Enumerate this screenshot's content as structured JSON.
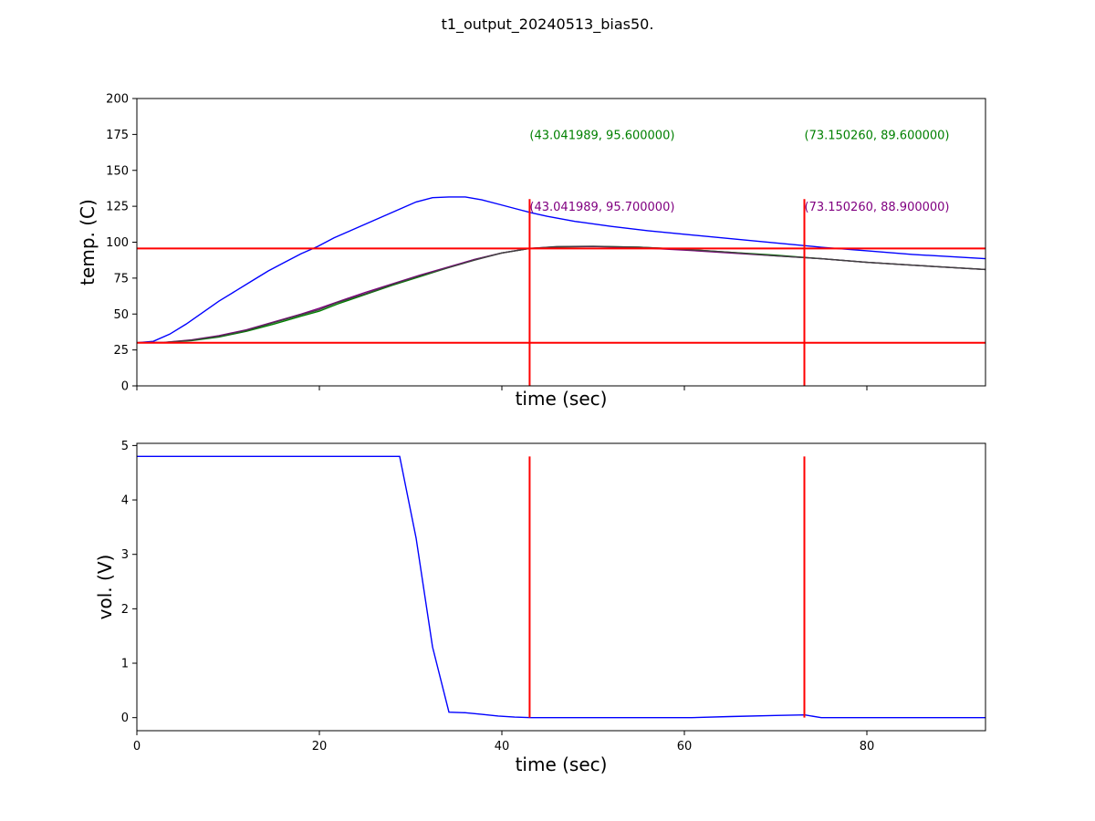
{
  "figure": {
    "title": "t1_output_20240513_bias50."
  },
  "chart_data": [
    {
      "type": "line",
      "xlabel": "time (sec)",
      "ylabel": "temp. (C)",
      "xlim": [
        0,
        93
      ],
      "ylim": [
        0,
        200
      ],
      "yticks": [
        0,
        25,
        50,
        75,
        100,
        125,
        150,
        175,
        200
      ],
      "xticks": [
        0,
        20,
        40,
        60,
        80
      ],
      "show_xtick_labels": false,
      "grid": false,
      "series": [
        {
          "color": "#0000ff",
          "x": [
            0,
            1.8,
            3.6,
            5.4,
            7.2,
            9,
            10.8,
            12.6,
            14.4,
            16.2,
            18,
            19.8,
            21.6,
            23.4,
            25.2,
            27,
            28.8,
            30.6,
            32.4,
            34.2,
            36,
            37.8,
            39.6,
            41.4,
            43.2,
            45,
            48,
            52,
            56,
            60,
            65,
            70,
            75,
            80,
            85,
            93
          ],
          "y": [
            30,
            31,
            36,
            43,
            51,
            59,
            66,
            73,
            80,
            86,
            92,
            97,
            103,
            108,
            113,
            118,
            123,
            128,
            131,
            131.5,
            131.5,
            129.5,
            126.5,
            123.5,
            120.5,
            118,
            114.5,
            111,
            108,
            105.5,
            102.5,
            99.5,
            96.5,
            94,
            91.5,
            88.5
          ]
        },
        {
          "color": "#008000",
          "x": [
            0,
            3,
            6,
            9,
            12,
            15,
            18,
            20,
            22,
            25,
            28,
            31,
            34,
            37,
            40,
            43,
            46,
            50,
            55,
            60,
            65,
            70,
            75,
            80,
            85,
            93
          ],
          "y": [
            30,
            30.2,
            31.5,
            34,
            38,
            43,
            48.5,
            52,
            57,
            63.5,
            70,
            76,
            82,
            88,
            92.5,
            95.6,
            96.6,
            97,
            96.5,
            95,
            93,
            91,
            88.5,
            86,
            84,
            81
          ]
        },
        {
          "color": "#800080",
          "x": [
            0,
            3,
            6,
            9,
            12,
            15,
            18,
            20,
            22,
            25,
            28,
            31,
            34,
            37,
            40,
            43,
            46,
            50,
            55,
            60,
            65,
            70,
            75,
            80,
            85,
            93
          ],
          "y": [
            30,
            30.3,
            32,
            35,
            39,
            44.5,
            50,
            54,
            58.5,
            65,
            71,
            77,
            82.5,
            88,
            92.5,
            95.7,
            96.8,
            97,
            96.2,
            94.5,
            92.5,
            90.5,
            88.5,
            86,
            84,
            81
          ]
        },
        {
          "color": "#404040",
          "x": [
            0,
            3,
            6,
            9,
            12,
            15,
            18,
            20,
            22,
            25,
            28,
            31,
            34,
            37,
            40,
            43,
            46,
            50,
            55,
            60,
            65,
            70,
            75,
            80,
            85,
            93
          ],
          "y": [
            30,
            30.2,
            31.8,
            34.5,
            38.5,
            44,
            49.5,
            53,
            58,
            64,
            70.5,
            76.5,
            82,
            87.5,
            92.5,
            95.6,
            96.9,
            97.2,
            96.5,
            95,
            93,
            90.5,
            88.5,
            86,
            84,
            81
          ]
        }
      ],
      "hlines": [
        {
          "y": 95.6,
          "color": "#ff0000"
        },
        {
          "y": 30,
          "color": "#ff0000"
        }
      ],
      "vlines": [
        {
          "x": 43.041989,
          "ymin": 0,
          "ymax": 130,
          "color": "#ff0000"
        },
        {
          "x": 73.15026,
          "ymin": 0,
          "ymax": 130,
          "color": "#ff0000"
        }
      ],
      "annotations": [
        {
          "text": "(43.041989, 95.600000)",
          "x": 43.041989,
          "y": 175,
          "color": "#008000"
        },
        {
          "text": "(73.150260, 89.600000)",
          "x": 73.15026,
          "y": 175,
          "color": "#008000"
        },
        {
          "text": "(43.041989, 95.700000)",
          "x": 43.041989,
          "y": 125,
          "color": "#800080"
        },
        {
          "text": "(73.150260, 88.900000)",
          "x": 73.15026,
          "y": 125,
          "color": "#800080"
        }
      ]
    },
    {
      "type": "line",
      "xlabel": "time (sec)",
      "ylabel": "vol. (V)",
      "xlim": [
        0,
        93
      ],
      "ylim": [
        -0.24,
        5.04
      ],
      "yticks": [
        0,
        1,
        2,
        3,
        4,
        5
      ],
      "xticks": [
        0,
        20,
        40,
        60,
        80
      ],
      "show_xtick_labels": true,
      "grid": false,
      "series": [
        {
          "color": "#0000ff",
          "x": [
            0,
            28.8,
            30.6,
            32.4,
            34.2,
            36,
            37.8,
            39.6,
            41.4,
            43.2,
            45,
            50,
            55,
            60.8,
            65,
            70,
            73.2,
            75,
            80,
            93
          ],
          "y": [
            4.8,
            4.8,
            3.3,
            1.3,
            0.1,
            0.09,
            0.06,
            0.03,
            0.01,
            0,
            0,
            0,
            0,
            0,
            0.02,
            0.04,
            0.05,
            0,
            0,
            0
          ]
        }
      ],
      "hlines": [],
      "vlines": [
        {
          "x": 43.041989,
          "ymin": 0,
          "ymax": 4.8,
          "color": "#ff0000"
        },
        {
          "x": 73.15026,
          "ymin": 0,
          "ymax": 4.8,
          "color": "#ff0000"
        }
      ],
      "annotations": []
    }
  ]
}
